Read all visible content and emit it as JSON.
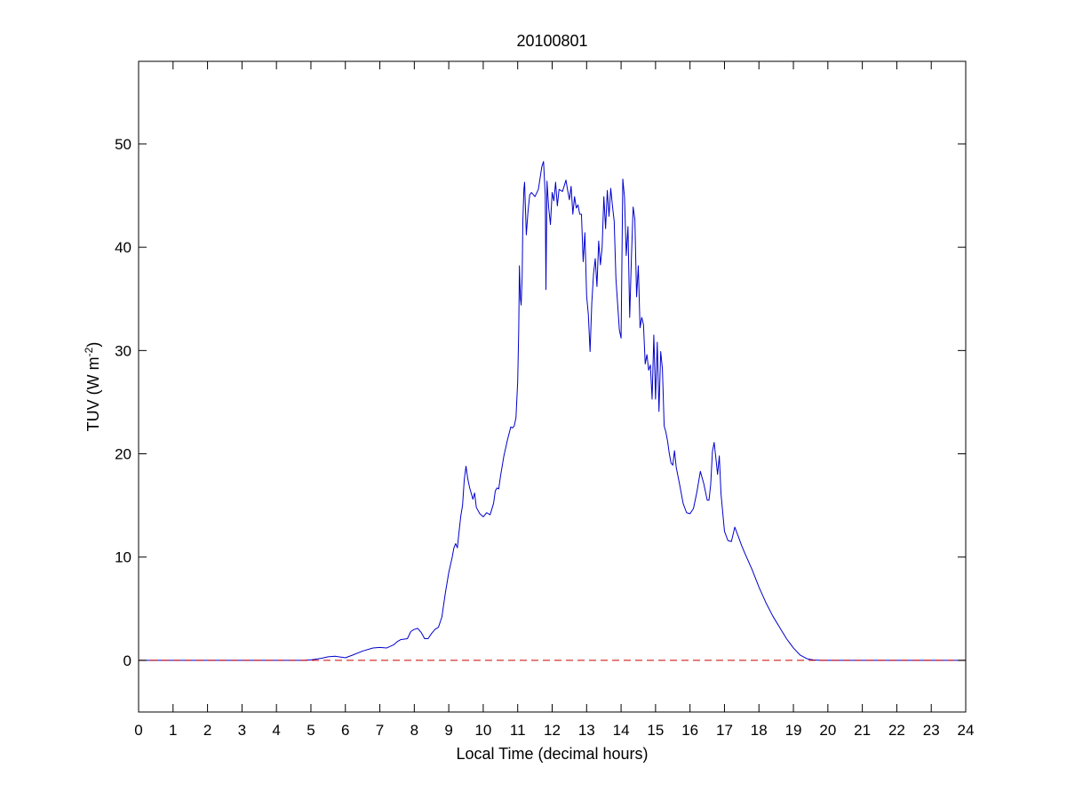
{
  "chart_data": {
    "type": "line",
    "title": "20100801",
    "xlabel": "Local Time (decimal hours)",
    "ylabel": {
      "prefix": "TUV (W m",
      "superscript": "-2",
      "suffix": ")"
    },
    "xlim": [
      0,
      24
    ],
    "ylim": [
      -5,
      58
    ],
    "xticks": [
      0,
      1,
      2,
      3,
      4,
      5,
      6,
      7,
      8,
      9,
      10,
      11,
      12,
      13,
      14,
      15,
      16,
      17,
      18,
      19,
      20,
      21,
      22,
      23,
      24
    ],
    "yticks": [
      0,
      10,
      20,
      30,
      40,
      50
    ],
    "grid": false,
    "series": [
      {
        "color": "#0000cc",
        "style": "solid",
        "points": [
          [
            0,
            0
          ],
          [
            4.8,
            0
          ],
          [
            5.0,
            0.05
          ],
          [
            5.3,
            0.2
          ],
          [
            5.5,
            0.35
          ],
          [
            5.7,
            0.4
          ],
          [
            5.9,
            0.3
          ],
          [
            6.0,
            0.25
          ],
          [
            6.2,
            0.5
          ],
          [
            6.5,
            0.9
          ],
          [
            6.8,
            1.2
          ],
          [
            7.0,
            1.25
          ],
          [
            7.2,
            1.2
          ],
          [
            7.4,
            1.5
          ],
          [
            7.5,
            1.8
          ],
          [
            7.6,
            2.0
          ],
          [
            7.8,
            2.1
          ],
          [
            7.9,
            2.8
          ],
          [
            8.0,
            3.0
          ],
          [
            8.1,
            3.1
          ],
          [
            8.2,
            2.7
          ],
          [
            8.3,
            2.1
          ],
          [
            8.4,
            2.1
          ],
          [
            8.5,
            2.6
          ],
          [
            8.6,
            3.0
          ],
          [
            8.7,
            3.2
          ],
          [
            8.8,
            4.2
          ],
          [
            8.9,
            6.5
          ],
          [
            9.0,
            8.5
          ],
          [
            9.1,
            10.0
          ],
          [
            9.15,
            10.9
          ],
          [
            9.2,
            11.3
          ],
          [
            9.25,
            10.9
          ],
          [
            9.3,
            12.5
          ],
          [
            9.35,
            14.0
          ],
          [
            9.4,
            15.0
          ],
          [
            9.45,
            17.5
          ],
          [
            9.5,
            18.8
          ],
          [
            9.55,
            17.6
          ],
          [
            9.6,
            16.8
          ],
          [
            9.7,
            15.6
          ],
          [
            9.75,
            16.2
          ],
          [
            9.8,
            14.8
          ],
          [
            9.9,
            14.2
          ],
          [
            10.0,
            13.9
          ],
          [
            10.1,
            14.3
          ],
          [
            10.2,
            14.1
          ],
          [
            10.3,
            15.2
          ],
          [
            10.35,
            16.4
          ],
          [
            10.4,
            16.7
          ],
          [
            10.45,
            16.6
          ],
          [
            10.5,
            17.8
          ],
          [
            10.6,
            19.8
          ],
          [
            10.7,
            21.3
          ],
          [
            10.8,
            22.6
          ],
          [
            10.85,
            22.5
          ],
          [
            10.9,
            22.7
          ],
          [
            10.95,
            23.5
          ],
          [
            11.0,
            27.0
          ],
          [
            11.03,
            32.0
          ],
          [
            11.05,
            38.2
          ],
          [
            11.08,
            35.0
          ],
          [
            11.1,
            34.4
          ],
          [
            11.13,
            37.2
          ],
          [
            11.15,
            42.6
          ],
          [
            11.18,
            45.6
          ],
          [
            11.2,
            46.3
          ],
          [
            11.25,
            41.2
          ],
          [
            11.3,
            43.5
          ],
          [
            11.35,
            45.1
          ],
          [
            11.4,
            45.3
          ],
          [
            11.5,
            44.9
          ],
          [
            11.6,
            45.6
          ],
          [
            11.7,
            47.8
          ],
          [
            11.75,
            48.3
          ],
          [
            11.8,
            45.0
          ],
          [
            11.82,
            35.9
          ],
          [
            11.85,
            46.4
          ],
          [
            11.9,
            43.8
          ],
          [
            11.95,
            42.2
          ],
          [
            12.0,
            45.3
          ],
          [
            12.05,
            44.5
          ],
          [
            12.1,
            46.3
          ],
          [
            12.15,
            44.0
          ],
          [
            12.2,
            45.6
          ],
          [
            12.3,
            45.4
          ],
          [
            12.4,
            46.5
          ],
          [
            12.45,
            45.5
          ],
          [
            12.5,
            44.6
          ],
          [
            12.55,
            45.9
          ],
          [
            12.6,
            43.2
          ],
          [
            12.65,
            44.9
          ],
          [
            12.7,
            43.8
          ],
          [
            12.75,
            44.1
          ],
          [
            12.8,
            43.2
          ],
          [
            12.85,
            43.2
          ],
          [
            12.9,
            38.6
          ],
          [
            12.95,
            41.4
          ],
          [
            13.0,
            35.3
          ],
          [
            13.05,
            33.5
          ],
          [
            13.1,
            29.9
          ],
          [
            13.15,
            34.6
          ],
          [
            13.2,
            37.4
          ],
          [
            13.25,
            38.9
          ],
          [
            13.3,
            36.2
          ],
          [
            13.35,
            40.6
          ],
          [
            13.4,
            38.3
          ],
          [
            13.45,
            40.0
          ],
          [
            13.5,
            44.9
          ],
          [
            13.55,
            41.8
          ],
          [
            13.6,
            45.5
          ],
          [
            13.65,
            43.0
          ],
          [
            13.7,
            45.7
          ],
          [
            13.75,
            44.0
          ],
          [
            13.8,
            42.5
          ],
          [
            13.85,
            37.0
          ],
          [
            13.9,
            34.5
          ],
          [
            13.95,
            32.0
          ],
          [
            14.0,
            31.2
          ],
          [
            14.05,
            46.6
          ],
          [
            14.1,
            44.8
          ],
          [
            14.15,
            39.2
          ],
          [
            14.2,
            42.0
          ],
          [
            14.25,
            33.2
          ],
          [
            14.3,
            39.0
          ],
          [
            14.35,
            43.9
          ],
          [
            14.4,
            42.7
          ],
          [
            14.45,
            35.2
          ],
          [
            14.5,
            38.2
          ],
          [
            14.55,
            32.2
          ],
          [
            14.6,
            33.2
          ],
          [
            14.65,
            32.5
          ],
          [
            14.7,
            28.7
          ],
          [
            14.75,
            29.6
          ],
          [
            14.8,
            28.1
          ],
          [
            14.85,
            28.6
          ],
          [
            14.9,
            25.3
          ],
          [
            14.95,
            31.5
          ],
          [
            15.0,
            25.3
          ],
          [
            15.05,
            30.8
          ],
          [
            15.1,
            24.1
          ],
          [
            15.15,
            29.9
          ],
          [
            15.2,
            28.2
          ],
          [
            15.25,
            22.7
          ],
          [
            15.3,
            22.1
          ],
          [
            15.35,
            21.2
          ],
          [
            15.4,
            20.0
          ],
          [
            15.45,
            19.1
          ],
          [
            15.5,
            18.9
          ],
          [
            15.55,
            20.3
          ],
          [
            15.6,
            18.7
          ],
          [
            15.7,
            17.0
          ],
          [
            15.8,
            15.2
          ],
          [
            15.9,
            14.3
          ],
          [
            16.0,
            14.2
          ],
          [
            16.1,
            14.7
          ],
          [
            16.2,
            16.3
          ],
          [
            16.3,
            18.3
          ],
          [
            16.4,
            17.1
          ],
          [
            16.5,
            15.5
          ],
          [
            16.55,
            15.5
          ],
          [
            16.6,
            17.0
          ],
          [
            16.65,
            20.2
          ],
          [
            16.7,
            21.1
          ],
          [
            16.75,
            19.6
          ],
          [
            16.8,
            18.0
          ],
          [
            16.85,
            19.8
          ],
          [
            16.9,
            16.1
          ],
          [
            17.0,
            12.5
          ],
          [
            17.1,
            11.6
          ],
          [
            17.2,
            11.5
          ],
          [
            17.3,
            12.9
          ],
          [
            17.4,
            12.0
          ],
          [
            17.5,
            11.1
          ],
          [
            17.6,
            10.3
          ],
          [
            17.8,
            8.8
          ],
          [
            18.0,
            7.1
          ],
          [
            18.2,
            5.6
          ],
          [
            18.4,
            4.3
          ],
          [
            18.6,
            3.2
          ],
          [
            18.8,
            2.1
          ],
          [
            19.0,
            1.2
          ],
          [
            19.2,
            0.5
          ],
          [
            19.4,
            0.15
          ],
          [
            19.6,
            0.03
          ],
          [
            19.8,
            0
          ],
          [
            24,
            0
          ]
        ]
      },
      {
        "color": "#cc0000",
        "style": "dashed",
        "points": [
          [
            0,
            0
          ],
          [
            24,
            0
          ]
        ]
      }
    ]
  }
}
